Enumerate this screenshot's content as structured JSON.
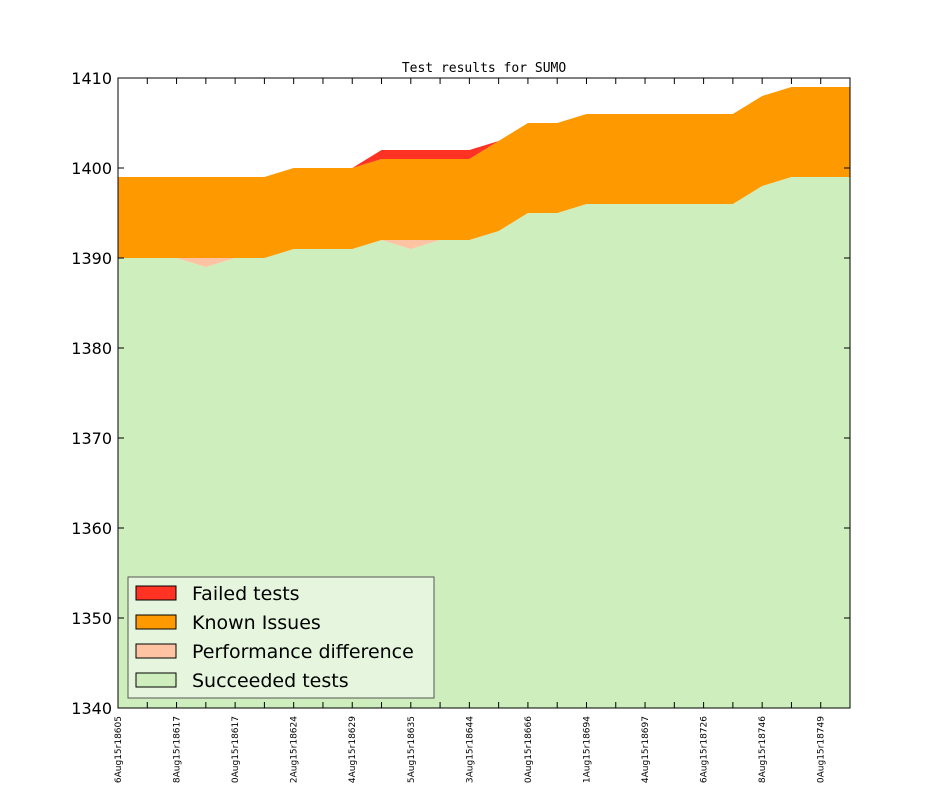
{
  "chart_data": {
    "type": "area",
    "title": "Test results for SUMO",
    "xlabel": "",
    "ylabel": "",
    "ylim": [
      1340,
      1410
    ],
    "yticks": [
      1340,
      1350,
      1360,
      1370,
      1380,
      1390,
      1400,
      1410
    ],
    "grid": false,
    "legend_position": "lower-left",
    "x_labels": [
      "6Aug15r18605",
      "8Aug15r18617",
      "0Aug15r18617",
      "2Aug15r18624",
      "4Aug15r18629",
      "5Aug15r18635",
      "3Aug15r18644",
      "0Aug15r18666",
      "1Aug15r18694",
      "4Aug15r18697",
      "6Aug15r18726",
      "8Aug15r18746",
      "0Aug15r18749"
    ],
    "series": [
      {
        "name": "Succeeded tests",
        "color": "#ceeebd",
        "values": [
          1390,
          1390,
          1390,
          1389,
          1390,
          1390,
          1391,
          1391,
          1391,
          1392,
          1391,
          1392,
          1392,
          1393,
          1395,
          1395,
          1396,
          1396,
          1396,
          1396,
          1396,
          1396,
          1398,
          1399,
          1399,
          1399
        ]
      },
      {
        "name": "Performance difference",
        "color": "#fec3a2",
        "values": [
          0,
          0,
          0,
          1,
          0,
          0,
          0,
          0,
          0,
          0,
          1,
          0,
          0,
          0,
          0,
          0,
          0,
          0,
          0,
          0,
          0,
          0,
          0,
          0,
          0,
          0
        ]
      },
      {
        "name": "Known Issues",
        "color": "#fe9900",
        "values": [
          9,
          9,
          9,
          9,
          9,
          9,
          9,
          9,
          9,
          9,
          9,
          9,
          9,
          10,
          10,
          10,
          10,
          10,
          10,
          10,
          10,
          10,
          10,
          10,
          10,
          10
        ]
      },
      {
        "name": "Failed tests",
        "color": "#fe3324",
        "values": [
          0,
          0,
          0,
          0,
          0,
          0,
          0,
          0,
          0,
          1,
          1,
          1,
          1,
          0,
          0,
          0,
          0,
          0,
          0,
          0,
          0,
          0,
          0,
          0,
          0,
          0
        ]
      }
    ],
    "legend": [
      {
        "label": "Failed tests",
        "color": "#fe3324"
      },
      {
        "label": "Known Issues",
        "color": "#fe9900"
      },
      {
        "label": "Performance difference",
        "color": "#fec3a2"
      },
      {
        "label": "Succeeded tests",
        "color": "#ceeebd"
      }
    ]
  }
}
